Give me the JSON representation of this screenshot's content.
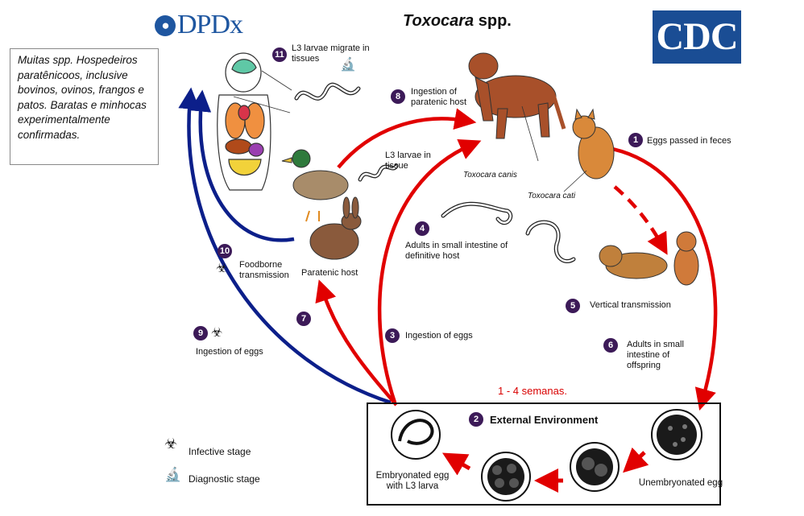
{
  "header": {
    "logo_text": "DPDx",
    "title_italic": "Toxocara",
    "title_rest": " spp.",
    "cdc_text": "CDC"
  },
  "note": {
    "text": "Muitas spp. Hospedeiros paratênicoos, inclusive bovinos, ovinos, frangos e patos. Baratas e minhocas experimentalmente confirmadas."
  },
  "steps": {
    "s1": {
      "num": "1",
      "label": "Eggs passed in feces"
    },
    "s2": {
      "num": "2",
      "label": "External Environment"
    },
    "s3": {
      "num": "3",
      "label": "Ingestion of eggs"
    },
    "s4": {
      "num": "4",
      "label": "Adults in small intestine of definitive host"
    },
    "s5": {
      "num": "5",
      "label": "Vertical transmission"
    },
    "s6": {
      "num": "6",
      "label": "Adults in small intestine of offspring"
    },
    "s7": {
      "num": "7"
    },
    "s8": {
      "num": "8",
      "label": "Ingestion of paratenic host"
    },
    "s9": {
      "num": "9",
      "label": "Ingestion of eggs"
    },
    "s10": {
      "num": "10",
      "label": "Foodborne transmission"
    },
    "s11": {
      "num": "11",
      "label": "L3 larvae migrate in tissues"
    }
  },
  "labels": {
    "l3_tissue": "L3 larvae in tissue",
    "paratenic_host": "Paratenic host",
    "toxocara_canis": "Toxocara canis",
    "toxocara_cati": "Toxocara cati",
    "embryonated": "Embryonated egg with L3 larva",
    "unembryonated": "Unembryonated egg",
    "duration": "1 - 4 semanas."
  },
  "legend": {
    "infective": "Infective stage",
    "diagnostic": "Diagnostic stage"
  },
  "colors": {
    "red_arrow": "#e10000",
    "blue_arrow": "#0c1f8a",
    "step_badge": "#3c1a58",
    "cdc_blue": "#1a4d94",
    "dpdx_blue": "#1e56a0"
  }
}
